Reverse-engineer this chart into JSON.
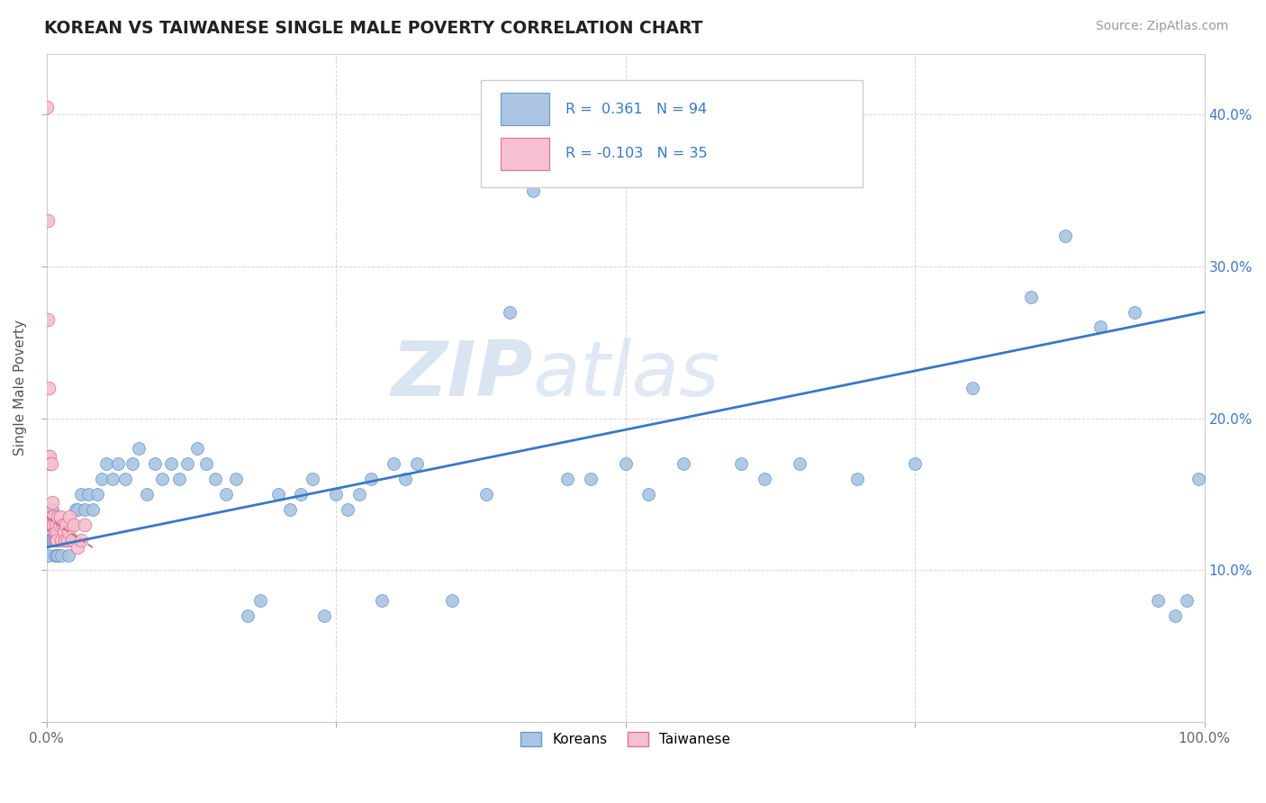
{
  "title": "KOREAN VS TAIWANESE SINGLE MALE POVERTY CORRELATION CHART",
  "source": "Source: ZipAtlas.com",
  "ylabel": "Single Male Poverty",
  "xlim": [
    0.0,
    1.0
  ],
  "ylim": [
    0.0,
    0.44
  ],
  "x_ticks": [
    0.0,
    0.25,
    0.5,
    0.75,
    1.0
  ],
  "x_tick_labels": [
    "0.0%",
    "",
    "",
    "",
    "100.0%"
  ],
  "y_ticks": [
    0.0,
    0.1,
    0.2,
    0.3,
    0.4
  ],
  "y_tick_labels_left": [
    "",
    "",
    "",
    "",
    ""
  ],
  "y_tick_labels_right": [
    "",
    "10.0%",
    "20.0%",
    "30.0%",
    "40.0%"
  ],
  "korean_R": 0.361,
  "korean_N": 94,
  "taiwanese_R": -0.103,
  "taiwanese_N": 35,
  "korean_color": "#aac4e2",
  "korean_edge": "#6699cc",
  "taiwanese_color": "#f5c0d0",
  "taiwanese_edge": "#e07090",
  "trend_korean_color": "#3878c8",
  "trend_taiwanese_color": "#d06080",
  "watermark_zip": "ZIP",
  "watermark_atlas": "atlas",
  "background_color": "#ffffff",
  "grid_color": "#cccccc",
  "legend_text_color": "#3878c8",
  "korean_x": [
    0.001,
    0.002,
    0.002,
    0.003,
    0.003,
    0.004,
    0.004,
    0.005,
    0.005,
    0.005,
    0.006,
    0.006,
    0.007,
    0.007,
    0.008,
    0.008,
    0.009,
    0.009,
    0.01,
    0.01,
    0.011,
    0.012,
    0.013,
    0.014,
    0.015,
    0.016,
    0.017,
    0.018,
    0.019,
    0.02,
    0.022,
    0.025,
    0.027,
    0.03,
    0.033,
    0.036,
    0.04,
    0.044,
    0.048,
    0.052,
    0.057,
    0.062,
    0.068,
    0.074,
    0.08,
    0.087,
    0.094,
    0.1,
    0.108,
    0.115,
    0.122,
    0.13,
    0.138,
    0.146,
    0.155,
    0.164,
    0.174,
    0.185,
    0.2,
    0.21,
    0.22,
    0.23,
    0.24,
    0.25,
    0.26,
    0.27,
    0.28,
    0.29,
    0.3,
    0.31,
    0.32,
    0.35,
    0.38,
    0.4,
    0.42,
    0.45,
    0.47,
    0.5,
    0.52,
    0.55,
    0.6,
    0.62,
    0.65,
    0.7,
    0.75,
    0.8,
    0.85,
    0.88,
    0.91,
    0.94,
    0.96,
    0.975,
    0.985,
    0.995
  ],
  "korean_y": [
    0.12,
    0.11,
    0.13,
    0.12,
    0.13,
    0.12,
    0.13,
    0.12,
    0.13,
    0.14,
    0.12,
    0.13,
    0.11,
    0.12,
    0.12,
    0.13,
    0.11,
    0.12,
    0.11,
    0.12,
    0.13,
    0.12,
    0.11,
    0.12,
    0.13,
    0.12,
    0.13,
    0.12,
    0.11,
    0.12,
    0.13,
    0.14,
    0.14,
    0.15,
    0.14,
    0.15,
    0.14,
    0.15,
    0.16,
    0.17,
    0.16,
    0.17,
    0.16,
    0.17,
    0.18,
    0.15,
    0.17,
    0.16,
    0.17,
    0.16,
    0.17,
    0.18,
    0.17,
    0.16,
    0.15,
    0.16,
    0.07,
    0.08,
    0.15,
    0.14,
    0.15,
    0.16,
    0.07,
    0.15,
    0.14,
    0.15,
    0.16,
    0.08,
    0.17,
    0.16,
    0.17,
    0.08,
    0.15,
    0.27,
    0.35,
    0.16,
    0.16,
    0.17,
    0.15,
    0.17,
    0.17,
    0.16,
    0.17,
    0.16,
    0.17,
    0.22,
    0.28,
    0.32,
    0.26,
    0.27,
    0.08,
    0.07,
    0.08,
    0.16
  ],
  "taiwanese_x": [
    0.0005,
    0.001,
    0.0015,
    0.002,
    0.002,
    0.003,
    0.003,
    0.004,
    0.004,
    0.005,
    0.005,
    0.006,
    0.006,
    0.007,
    0.007,
    0.008,
    0.008,
    0.009,
    0.009,
    0.01,
    0.011,
    0.012,
    0.013,
    0.014,
    0.015,
    0.016,
    0.017,
    0.018,
    0.019,
    0.02,
    0.022,
    0.024,
    0.027,
    0.03,
    0.033
  ],
  "taiwanese_y": [
    0.405,
    0.33,
    0.265,
    0.22,
    0.175,
    0.175,
    0.17,
    0.17,
    0.135,
    0.145,
    0.13,
    0.135,
    0.13,
    0.125,
    0.125,
    0.13,
    0.12,
    0.125,
    0.12,
    0.135,
    0.13,
    0.135,
    0.12,
    0.13,
    0.125,
    0.12,
    0.13,
    0.12,
    0.125,
    0.135,
    0.12,
    0.13,
    0.115,
    0.12,
    0.13
  ]
}
